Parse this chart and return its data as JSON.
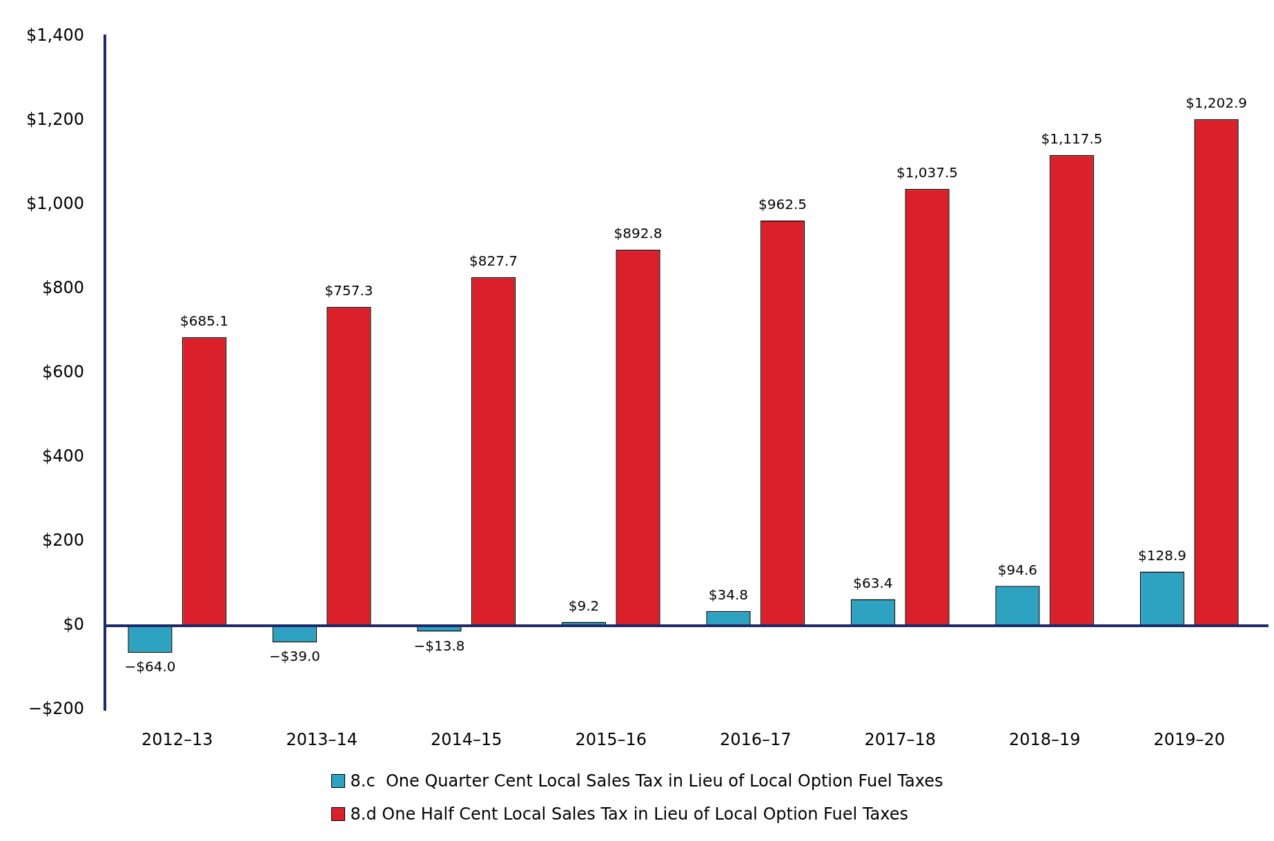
{
  "chart_data": {
    "type": "bar",
    "categories": [
      "2012–13",
      "2013–14",
      "2014–15",
      "2015–16",
      "2016–17",
      "2017–18",
      "2018–19",
      "2019–20"
    ],
    "series": [
      {
        "name": "8.c  One Quarter Cent Local Sales Tax in Lieu of Local Option Fuel Taxes",
        "color": "#2ea3c1",
        "values": [
          -64.0,
          -39.0,
          -13.8,
          9.2,
          34.8,
          63.4,
          94.6,
          128.9
        ],
        "value_labels": [
          "−$64.0",
          "−$39.0",
          "−$13.8",
          "$9.2",
          "$34.8",
          "$63.4",
          "$94.6",
          "$128.9"
        ]
      },
      {
        "name": "8.d One Half Cent Local Sales Tax in Lieu of Local Option Fuel Taxes",
        "color": "#d9202b",
        "values": [
          685.1,
          757.3,
          827.7,
          892.8,
          962.5,
          1037.5,
          1117.5,
          1202.9
        ],
        "value_labels": [
          "$685.1",
          "$757.3",
          "$827.7",
          "$892.8",
          "$962.5",
          "$1,037.5",
          "$1,117.5",
          "$1,202.9"
        ]
      }
    ],
    "ylim": [
      -200,
      1400
    ],
    "yticks": [
      {
        "value": -200,
        "label": "−$200"
      },
      {
        "value": 0,
        "label": "$0"
      },
      {
        "value": 200,
        "label": "$200"
      },
      {
        "value": 400,
        "label": "$400"
      },
      {
        "value": 600,
        "label": "$600"
      },
      {
        "value": 800,
        "label": "$800"
      },
      {
        "value": 1000,
        "label": "$1,000"
      },
      {
        "value": 1200,
        "label": "$1,200"
      },
      {
        "value": 1400,
        "label": "$1,400"
      }
    ],
    "ref_lines": [
      {
        "axis": "y",
        "value": 0,
        "color": "#1c2a6b"
      }
    ],
    "grid": false,
    "legend": "bottom"
  }
}
